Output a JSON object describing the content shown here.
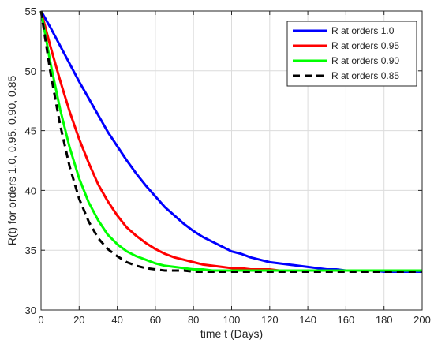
{
  "chart_data": {
    "type": "line",
    "xlabel": "time t (Days)",
    "ylabel": "R(t) for orders 1.0, 0.95, 0.90, 0.85",
    "xlim": [
      0,
      200
    ],
    "ylim": [
      30,
      55
    ],
    "xticks": [
      0,
      20,
      40,
      60,
      80,
      100,
      120,
      140,
      160,
      180,
      200
    ],
    "yticks": [
      30,
      35,
      40,
      45,
      50,
      55
    ],
    "grid": true,
    "legend_position": "top-right",
    "x": [
      0,
      5,
      10,
      15,
      20,
      25,
      30,
      35,
      40,
      45,
      50,
      55,
      60,
      65,
      70,
      75,
      80,
      85,
      90,
      95,
      100,
      105,
      110,
      115,
      120,
      125,
      130,
      135,
      140,
      145,
      150,
      155,
      160,
      165,
      170,
      175,
      180,
      185,
      190,
      195,
      200
    ],
    "series": [
      {
        "name": "R at orders 1.0",
        "color": "#0000ff",
        "dash": "solid",
        "values": [
          55.0,
          53.6,
          52.1,
          50.6,
          49.1,
          47.7,
          46.3,
          44.9,
          43.7,
          42.5,
          41.4,
          40.4,
          39.5,
          38.6,
          37.9,
          37.2,
          36.6,
          36.1,
          35.7,
          35.3,
          34.9,
          34.7,
          34.4,
          34.2,
          34.0,
          33.9,
          33.8,
          33.7,
          33.6,
          33.5,
          33.4,
          33.4,
          33.3,
          33.3,
          33.3,
          33.3,
          33.2,
          33.2,
          33.2,
          33.2,
          33.2
        ]
      },
      {
        "name": "R at orders 0.95",
        "color": "#ff0000",
        "dash": "solid",
        "values": [
          55.0,
          52.0,
          49.2,
          46.6,
          44.3,
          42.3,
          40.5,
          39.1,
          37.9,
          36.9,
          36.2,
          35.6,
          35.1,
          34.7,
          34.4,
          34.2,
          34.0,
          33.8,
          33.7,
          33.6,
          33.5,
          33.5,
          33.4,
          33.4,
          33.4,
          33.3,
          33.3,
          33.3,
          33.3,
          33.3,
          33.3,
          33.3,
          33.3,
          33.3,
          33.3,
          33.3,
          33.3,
          33.3,
          33.3,
          33.3,
          33.3
        ]
      },
      {
        "name": "R at orders 0.90",
        "color": "#00ff00",
        "dash": "solid",
        "values": [
          55.0,
          50.6,
          46.8,
          43.6,
          41.0,
          39.0,
          37.5,
          36.3,
          35.5,
          34.9,
          34.5,
          34.2,
          33.9,
          33.7,
          33.6,
          33.5,
          33.4,
          33.4,
          33.3,
          33.3,
          33.3,
          33.3,
          33.3,
          33.3,
          33.3,
          33.3,
          33.3,
          33.3,
          33.3,
          33.3,
          33.3,
          33.3,
          33.3,
          33.3,
          33.3,
          33.3,
          33.3,
          33.3,
          33.3,
          33.3,
          33.3
        ]
      },
      {
        "name": "R at orders 0.85",
        "color": "#000000",
        "dash": "dashed",
        "values": [
          55.0,
          49.8,
          45.5,
          42.0,
          39.3,
          37.4,
          36.0,
          35.1,
          34.5,
          34.0,
          33.7,
          33.5,
          33.4,
          33.3,
          33.3,
          33.3,
          33.2,
          33.2,
          33.2,
          33.2,
          33.2,
          33.2,
          33.2,
          33.2,
          33.2,
          33.2,
          33.2,
          33.2,
          33.2,
          33.2,
          33.2,
          33.2,
          33.2,
          33.2,
          33.2,
          33.2,
          33.2,
          33.2,
          33.2,
          33.2,
          33.2
        ]
      }
    ]
  }
}
